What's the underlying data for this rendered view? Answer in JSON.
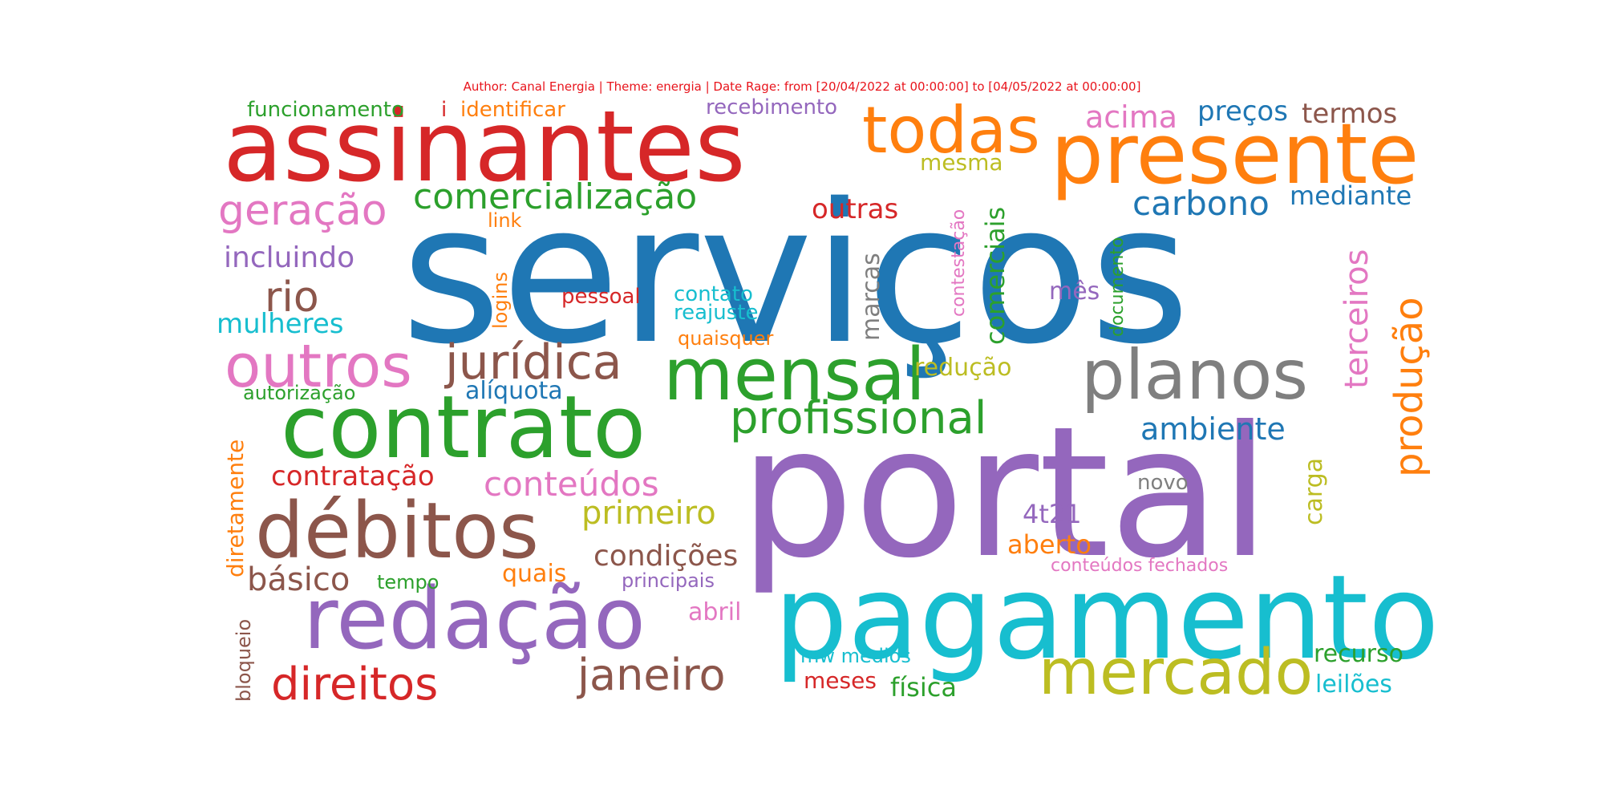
{
  "caption": "Author: Canal Energia | Theme: energia | Date Rage: from [20/04/2022 at 00:00:00] to [04/05/2022 at 00:00:00]",
  "palette": {
    "blue": "#1f77b4",
    "orange": "#ff7f0e",
    "green": "#2ca02c",
    "red": "#d62728",
    "purple": "#9467bd",
    "brown": "#8c564b",
    "pink": "#e377c2",
    "gray": "#7f7f7f",
    "olive": "#bcbd22",
    "cyan": "#17becf"
  },
  "words": [
    {
      "text": "serviços",
      "color": "blue",
      "rank": 1
    },
    {
      "text": "portal",
      "color": "purple",
      "rank": 2
    },
    {
      "text": "pagamento",
      "color": "cyan",
      "rank": 3
    },
    {
      "text": "assinantes",
      "color": "red",
      "rank": 4
    },
    {
      "text": "contrato",
      "color": "green",
      "rank": 5
    },
    {
      "text": "redação",
      "color": "purple",
      "rank": 6
    },
    {
      "text": "débitos",
      "color": "brown",
      "rank": 7
    },
    {
      "text": "presente",
      "color": "orange",
      "rank": 8
    },
    {
      "text": "mensal",
      "color": "green",
      "rank": 9
    },
    {
      "text": "planos",
      "color": "gray",
      "rank": 10
    },
    {
      "text": "outros",
      "color": "pink",
      "rank": 11
    },
    {
      "text": "mercado",
      "color": "olive",
      "rank": 12
    },
    {
      "text": "todas",
      "color": "orange",
      "rank": 13
    },
    {
      "text": "jurídica",
      "color": "brown",
      "rank": 14
    },
    {
      "text": "direitos",
      "color": "red",
      "rank": 15
    },
    {
      "text": "janeiro",
      "color": "brown",
      "rank": 16
    },
    {
      "text": "profissional",
      "color": "green",
      "rank": 17
    },
    {
      "text": "produção",
      "color": "orange",
      "rank": 18
    },
    {
      "text": "rio",
      "color": "brown",
      "rank": 19
    },
    {
      "text": "geração",
      "color": "pink",
      "rank": 20
    },
    {
      "text": "comercialização",
      "color": "green",
      "rank": 21
    },
    {
      "text": "conteúdos",
      "color": "pink",
      "rank": 22
    },
    {
      "text": "terceiros",
      "color": "pink",
      "rank": 23
    },
    {
      "text": "carbono",
      "color": "blue",
      "rank": 24
    },
    {
      "text": "primeiro",
      "color": "olive",
      "rank": 25
    },
    {
      "text": "básico",
      "color": "brown",
      "rank": 26
    },
    {
      "text": "ambiente",
      "color": "blue",
      "rank": 27
    },
    {
      "text": "condições",
      "color": "brown",
      "rank": 28
    },
    {
      "text": "comerciais",
      "color": "green",
      "rank": 29
    },
    {
      "text": "acima",
      "color": "pink",
      "rank": 30
    },
    {
      "text": "incluindo",
      "color": "purple",
      "rank": 31
    },
    {
      "text": "contratação",
      "color": "red",
      "rank": 32
    },
    {
      "text": "termos",
      "color": "brown",
      "rank": 33
    },
    {
      "text": "preços",
      "color": "blue",
      "rank": 34
    },
    {
      "text": "mulheres",
      "color": "cyan",
      "rank": 35
    },
    {
      "text": "diretamente",
      "color": "orange",
      "rank": 36
    },
    {
      "text": "outras",
      "color": "red",
      "rank": 37
    },
    {
      "text": "marcas",
      "color": "gray",
      "rank": 38
    },
    {
      "text": "mediante",
      "color": "blue",
      "rank": 39
    },
    {
      "text": "carga",
      "color": "olive",
      "rank": 40
    },
    {
      "text": "mês",
      "color": "purple",
      "rank": 41
    },
    {
      "text": "4t21",
      "color": "purple",
      "rank": 42
    },
    {
      "text": "aberto",
      "color": "orange",
      "rank": 43
    },
    {
      "text": "funcionamento",
      "color": "green",
      "rank": 44
    },
    {
      "text": "identificar",
      "color": "orange",
      "rank": 45
    },
    {
      "text": "recebimento",
      "color": "purple",
      "rank": 46
    },
    {
      "text": "mesma",
      "color": "olive",
      "rank": 47
    },
    {
      "text": "redução",
      "color": "olive",
      "rank": 48
    },
    {
      "text": "alíquota",
      "color": "blue",
      "rank": 49
    },
    {
      "text": "quais",
      "color": "orange",
      "rank": 50
    },
    {
      "text": "recurso",
      "color": "green",
      "rank": 51
    },
    {
      "text": "leilões",
      "color": "cyan",
      "rank": 52
    },
    {
      "text": "física",
      "color": "green",
      "rank": 53
    },
    {
      "text": "abril",
      "color": "pink",
      "rank": 54
    },
    {
      "text": "documento",
      "color": "green",
      "rank": 55
    },
    {
      "text": "contestação",
      "color": "pink",
      "rank": 56
    },
    {
      "text": "novo",
      "color": "gray",
      "rank": 57
    },
    {
      "text": "meses",
      "color": "red",
      "rank": 58
    },
    {
      "text": "autorização",
      "color": "green",
      "rank": 59
    },
    {
      "text": "pessoal",
      "color": "red",
      "rank": 60
    },
    {
      "text": "contato",
      "color": "cyan",
      "rank": 61
    },
    {
      "text": "reajuste",
      "color": "cyan",
      "rank": 62
    },
    {
      "text": "quaisquer",
      "color": "orange",
      "rank": 63
    },
    {
      "text": "logins",
      "color": "orange",
      "rank": 64
    },
    {
      "text": "principais",
      "color": "purple",
      "rank": 65
    },
    {
      "text": "tempo",
      "color": "green",
      "rank": 66
    },
    {
      "text": "mw médios",
      "color": "cyan",
      "rank": 67
    },
    {
      "text": "conteúdos fechados",
      "color": "pink",
      "rank": 68
    },
    {
      "text": "bloqueio",
      "color": "brown",
      "rank": 69
    },
    {
      "text": "link",
      "color": "orange",
      "rank": 70
    },
    {
      "text": "i",
      "color": "red",
      "rank": 71
    }
  ]
}
